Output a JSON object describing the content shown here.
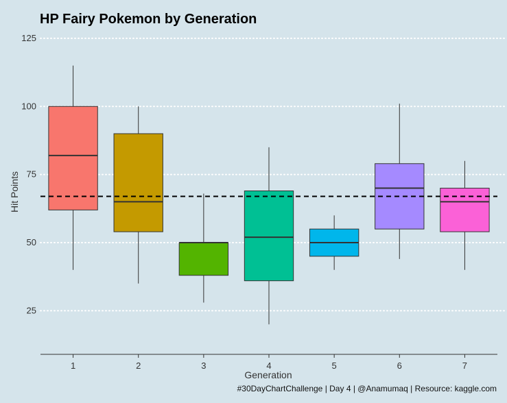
{
  "chart_data": {
    "type": "boxplot",
    "title": "HP Fairy Pokemon by Generation",
    "xlabel": "Generation",
    "ylabel": "Hit Points",
    "caption": "#30DayChartChallenge | Day 4 | @Anamumaq | Resource: kaggle.com",
    "categories": [
      "1",
      "2",
      "3",
      "4",
      "5",
      "6",
      "7"
    ],
    "y_ticks": [
      25,
      50,
      75,
      100,
      125
    ],
    "ylim": [
      9,
      128
    ],
    "grid": "horizontal dotted",
    "reference_line": 67,
    "boxes": [
      {
        "category": "1",
        "min": 40,
        "q1": 62,
        "median": 82,
        "q3": 100,
        "max": 115,
        "color": "#f8766d"
      },
      {
        "category": "2",
        "min": 35,
        "q1": 54,
        "median": 65,
        "q3": 90,
        "max": 100,
        "color": "#c49a00"
      },
      {
        "category": "3",
        "min": 28,
        "q1": 38,
        "median": 50,
        "q3": 50,
        "max": 68,
        "color": "#53b400"
      },
      {
        "category": "4",
        "min": 20,
        "q1": 36,
        "median": 52,
        "q3": 69,
        "max": 85,
        "color": "#00c094"
      },
      {
        "category": "5",
        "min": 40,
        "q1": 45,
        "median": 50,
        "q3": 55,
        "max": 60,
        "color": "#00b6eb"
      },
      {
        "category": "6",
        "min": 44,
        "q1": 55,
        "median": 70,
        "q3": 79,
        "max": 101,
        "color": "#a58aff"
      },
      {
        "category": "7",
        "min": 40,
        "q1": 54,
        "median": 65,
        "q3": 70,
        "max": 80,
        "color": "#fb61d7"
      }
    ]
  }
}
